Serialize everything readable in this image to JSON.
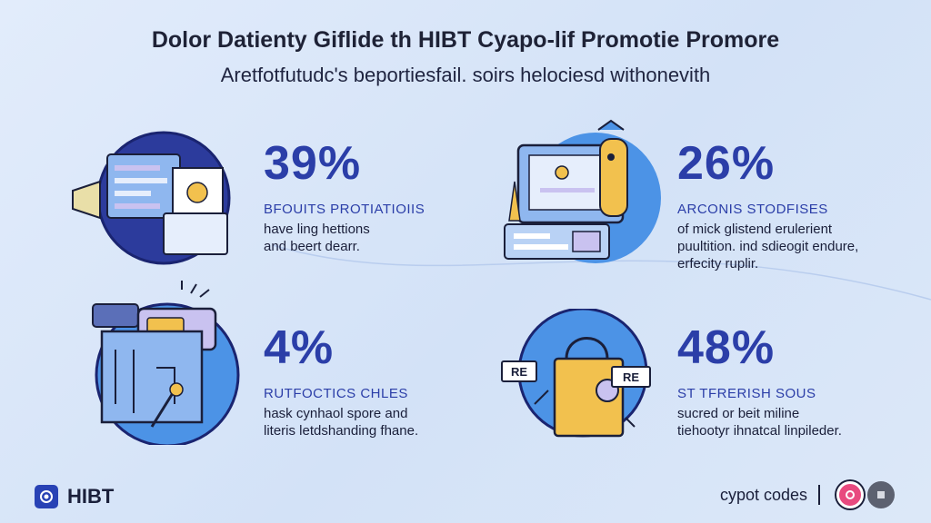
{
  "header": {
    "title": "Dolor Datienty Giflide th HIBT Cyapo-lif Promotie Promore",
    "subtitle": "Aretfotfutudc's beportiesfail. soirs helociesd withonevith"
  },
  "stats": [
    {
      "value": "39%",
      "heading": "BFOUITS PROTIATIOIIS",
      "lines": [
        "have ling hettions",
        "and beert dearr."
      ],
      "illustration": "laptop-dashboard-icon"
    },
    {
      "value": "26%",
      "heading": "ARCONIS STODFISES",
      "lines": [
        "of mick glistend erulerient",
        "puultition. ind sdieogit endure,",
        "erfecity ruplir."
      ],
      "illustration": "monitor-mascot-icon"
    },
    {
      "value": "4%",
      "heading": "RUTFOCTICS CHLES",
      "lines": [
        "hask cynhaol spore and",
        "literis letdshanding fhane."
      ],
      "illustration": "megaphone-calendar-icon"
    },
    {
      "value": "48%",
      "heading": "ST TFRERISH SOUS",
      "lines": [
        "sucred or beit miline",
        "tiehootyr ihnatcal linpileder."
      ],
      "illustration": "shopping-bag-tags-icon"
    }
  ],
  "tags": {
    "left": "RE",
    "right": "RE"
  },
  "footer": {
    "brand": "HIBT",
    "link": "cypot codes",
    "badges": [
      "pink-circle-icon",
      "gray-circle-icon"
    ]
  },
  "colors": {
    "accent": "#2b3ea8",
    "circle_dark": "#2c3b9c",
    "circle_light": "#4c93e6",
    "yellow": "#f2c14e",
    "lavender": "#c9c2f0"
  }
}
